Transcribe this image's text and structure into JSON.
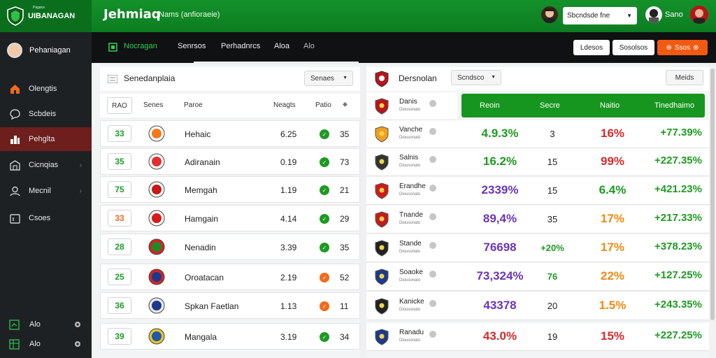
{
  "brand": {
    "name": "UIBANAGAN",
    "tag": "Pagaos"
  },
  "header": {
    "title": "Jehmiaq",
    "subtitle": "Nams (anfioraeie)",
    "select_value": "Sbcndsde fne",
    "user_name": "Sano"
  },
  "sidebar": {
    "profile": "Pehaniagan",
    "items": [
      {
        "label": "Olengtis",
        "icon": "home-icon"
      },
      {
        "label": "Scbdeis",
        "icon": "chat-icon"
      },
      {
        "label": "Pehglta",
        "icon": "stats-icon"
      },
      {
        "label": "Cicnqias",
        "icon": "building-icon"
      },
      {
        "label": "Mecnil",
        "icon": "user-icon"
      },
      {
        "label": "Csoes",
        "icon": "calendar-icon"
      }
    ],
    "footer": [
      {
        "label": "Alo"
      },
      {
        "label": "Alo"
      }
    ]
  },
  "tabs": [
    {
      "label": "Nocragan"
    },
    {
      "label": "Senrsos"
    },
    {
      "label": "Perhadnrcs"
    },
    {
      "label": "Aloa"
    },
    {
      "label": "Alo"
    }
  ],
  "actions": {
    "btn1": "Ldesos",
    "btn2": "Sosolsos",
    "btn3": "Ssos"
  },
  "left_panel": {
    "title": "Senedanplaia",
    "dropdown": "Senaes",
    "columns": {
      "rank": "RAO",
      "c2": "Senes",
      "team": "Paroe",
      "c4": "Neagts",
      "c5": "Patio"
    },
    "rows": [
      {
        "rank": "33",
        "team": "Hehaic",
        "value": "6.25",
        "status": "green",
        "score": "35",
        "rank_color": "#1f9a2a"
      },
      {
        "rank": "35",
        "team": "Adiranain",
        "value": "0.19",
        "status": "green",
        "score": "73",
        "rank_color": "#1f9a2a"
      },
      {
        "rank": "75",
        "team": "Memgah",
        "value": "1.19",
        "status": "green",
        "score": "21",
        "rank_color": "#1f9a2a"
      },
      {
        "rank": "33",
        "team": "Hamgain",
        "value": "4.14",
        "status": "green",
        "score": "29",
        "rank_color": "#f26a2a"
      },
      {
        "rank": "28",
        "team": "Nenadin",
        "value": "3.39",
        "status": "green",
        "score": "35",
        "rank_color": "#1f9a2a"
      },
      {
        "rank": "25",
        "team": "Oroatacan",
        "value": "2.19",
        "status": "orange",
        "score": "52",
        "rank_color": "#1f9a2a"
      },
      {
        "rank": "36",
        "team": "Spkan Faetlan",
        "value": "1.13",
        "status": "orange",
        "score": "11",
        "rank_color": "#1f9a2a"
      },
      {
        "rank": "39",
        "team": "Mangala",
        "value": "3.19",
        "status": "green",
        "score": "34",
        "rank_color": "#1f9a2a"
      }
    ]
  },
  "right_panel": {
    "title": "Dersnolan",
    "dropdown": "Scndsco",
    "more_button": "Meids",
    "columns": {
      "c1": "Reoin",
      "c2": "Secre",
      "c3": "Naitio",
      "c4": "Tinedhaimo"
    },
    "rows": [
      {
        "name": "Danis",
        "sub": "Diousonalo",
        "is_header": true
      },
      {
        "name": "Vanche",
        "sub": "Diousonalo",
        "v1": "4.9.3%",
        "v1c": "#1e9a22",
        "v2": "3",
        "v3": "16%",
        "v3c": "#d62a2a",
        "v4": "+77.39%",
        "v4c": "#1e9a22"
      },
      {
        "name": "Salnis",
        "sub": "Diousonalo",
        "v1": "16.2%",
        "v1c": "#1e9a22",
        "v2": "15",
        "v3": "99%",
        "v3c": "#d62a2a",
        "v4": "+227.35%",
        "v4c": "#1e9a22"
      },
      {
        "name": "Erandhe",
        "sub": "Diousonalo",
        "v1": "2339%",
        "v1c": "#6a35b8",
        "v2": "15",
        "v3": "6.4%",
        "v3c": "#1e9a22",
        "v4": "+421.23%",
        "v4c": "#1e9a22"
      },
      {
        "name": "Tnande",
        "sub": "Diousonalo",
        "v1": "89,4%",
        "v1c": "#6a35b8",
        "v2": "35",
        "v3": "17%",
        "v3c": "#f08a12",
        "v4": "+217.33%",
        "v4c": "#1e9a22"
      },
      {
        "name": "Stande",
        "sub": "Diousonalo",
        "v1": "76698",
        "v1c": "#6a35b8",
        "v2": "+20%",
        "v2c": "#1e9a22",
        "v3": "17%",
        "v3c": "#f08a12",
        "v4": "+378.23%",
        "v4c": "#1e9a22"
      },
      {
        "name": "Soaoke",
        "sub": "Diousonalo",
        "v1": "73,324%",
        "v1c": "#6a35b8",
        "v2": "76",
        "v2c": "#1e9a22",
        "v3": "22%",
        "v3c": "#f08a12",
        "v4": "+127.25%",
        "v4c": "#1e9a22"
      },
      {
        "name": "Kanicke",
        "sub": "Diousonalo",
        "v1": "43378",
        "v1c": "#6a35b8",
        "v2": "20",
        "v3": "1.5%",
        "v3c": "#f08a12",
        "v4": "+243.35%",
        "v4c": "#1e9a22"
      },
      {
        "name": "Ranadu",
        "sub": "Diousonalo",
        "v1": "43.0%",
        "v1c": "#d62a2a",
        "v2": "19",
        "v3": "15%",
        "v3c": "#d62a2a",
        "v4": "+227.25%",
        "v4c": "#1e9a22"
      }
    ]
  },
  "colors": {
    "brand_green": "#14912a",
    "accent_orange": "#f25a11",
    "sidebar_bg": "#1d2124",
    "active_item": "#6e1e1c"
  }
}
